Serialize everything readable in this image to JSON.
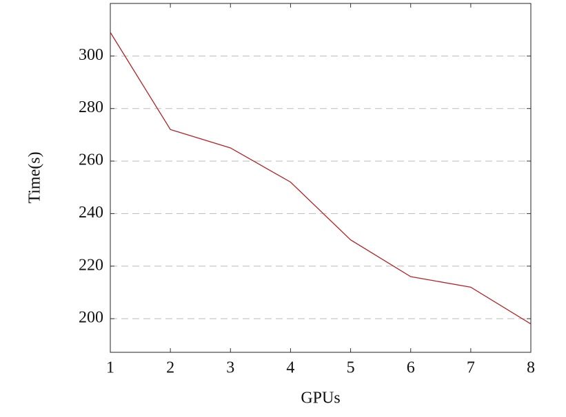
{
  "chart_data": {
    "type": "line",
    "x_label": "GPUs",
    "y_label": "Time(s)",
    "x": [
      1,
      2,
      3,
      4,
      5,
      6,
      7,
      8
    ],
    "series": [
      {
        "name": "Time",
        "color": "#b22222",
        "values": [
          309,
          272,
          265,
          252,
          230,
          216,
          212,
          198
        ]
      }
    ],
    "xlim": [
      1,
      8
    ],
    "xticks": [
      1,
      2,
      3,
      4,
      5,
      6,
      7,
      8
    ],
    "ylim": [
      187.2,
      320
    ],
    "yticks": [
      200,
      220,
      240,
      260,
      280,
      300
    ],
    "grid": true
  }
}
